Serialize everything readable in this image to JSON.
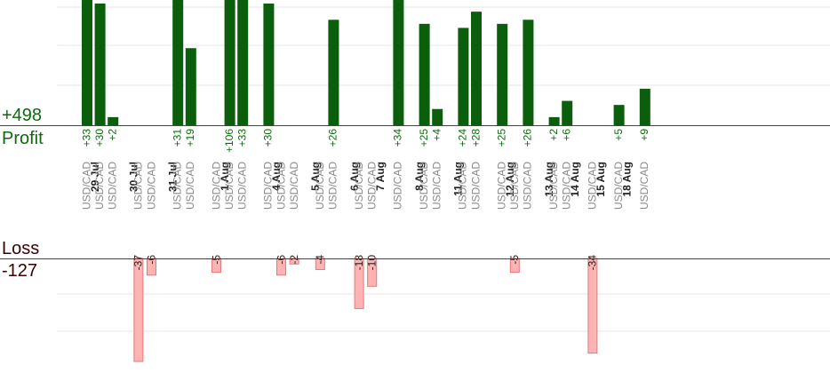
{
  "profit": {
    "total": "+498",
    "label": "Profit"
  },
  "loss": {
    "label": "Loss",
    "total": "-127"
  },
  "colors": {
    "profit_bar": "#0b5e0b",
    "profit_text": "#0b6b0b",
    "loss_fill": "#ffb3b3",
    "loss_stroke": "#e07a7a",
    "date_text": "#222222",
    "pair_text": "#8a8a8a",
    "grid": "#e6e6e6"
  },
  "chart_data": {
    "type": "bar",
    "profit_axis_max": 30,
    "loss_axis_max": 37,
    "groups": [
      {
        "date": "29 Jul",
        "trades": [
          {
            "pair": "USD/CAD",
            "value": 33,
            "label": "+33"
          },
          {
            "pair": "USD/CAD",
            "value": 30,
            "label": "+30"
          },
          {
            "pair": "USD/CAD",
            "value": 2,
            "label": "+2"
          }
        ]
      },
      {
        "date": "30 Jul",
        "trades": [
          {
            "pair": "USD/CAD",
            "value": -37,
            "label": "-37"
          },
          {
            "pair": "USD/CAD",
            "value": -6,
            "label": "-6"
          }
        ]
      },
      {
        "date": "31 Jul",
        "trades": [
          {
            "pair": "USD/CAD",
            "value": 31,
            "label": "+31"
          },
          {
            "pair": "USD/CAD",
            "value": 19,
            "label": "+19"
          }
        ]
      },
      {
        "date": "1 Aug",
        "trades": [
          {
            "pair": "USD/CAD",
            "value": -5,
            "label": "-5"
          },
          {
            "pair": "USD/CAD",
            "value": 106,
            "label": "+106"
          },
          {
            "pair": "USD/CAD",
            "value": 33,
            "label": "+33"
          }
        ]
      },
      {
        "date": "4 Aug",
        "trades": [
          {
            "pair": "USD/CAD",
            "value": 30,
            "label": "+30"
          },
          {
            "pair": "USD/CAD",
            "value": -6,
            "label": "-6"
          },
          {
            "pair": "USD/CAD",
            "value": -2,
            "label": "-2"
          }
        ]
      },
      {
        "date": "5 Aug",
        "trades": [
          {
            "pair": "USD/CAD",
            "value": -4,
            "label": "-4"
          },
          {
            "pair": "USD/CAD",
            "value": 26,
            "label": "+26"
          }
        ]
      },
      {
        "date": "6 Aug",
        "trades": [
          {
            "pair": "USD/CAD",
            "value": -18,
            "label": "-18"
          },
          {
            "pair": "USD/CAD",
            "value": -10,
            "label": "-10"
          }
        ]
      },
      {
        "date": "7 Aug",
        "trades": [
          {
            "pair": "USD/CAD",
            "value": 34,
            "label": "+34"
          }
        ]
      },
      {
        "date": "8 Aug",
        "trades": [
          {
            "pair": "USD/CAD",
            "value": 25,
            "label": "+25"
          },
          {
            "pair": "USD/CAD",
            "value": 4,
            "label": "+4"
          }
        ]
      },
      {
        "date": "11 Aug",
        "trades": [
          {
            "pair": "USD/CAD",
            "value": 24,
            "label": "+24"
          },
          {
            "pair": "USD/CAD",
            "value": 28,
            "label": "+28"
          }
        ]
      },
      {
        "date": "12 Aug",
        "trades": [
          {
            "pair": "USD/CAD",
            "value": 25,
            "label": "+25"
          },
          {
            "pair": "USD/CAD",
            "value": -5,
            "label": "-5"
          },
          {
            "pair": "USD/CAD",
            "value": 26,
            "label": "+26"
          }
        ]
      },
      {
        "date": "13 Aug",
        "trades": [
          {
            "pair": "USD/CAD",
            "value": 2,
            "label": "+2"
          },
          {
            "pair": "USD/CAD",
            "value": 6,
            "label": "+6"
          }
        ]
      },
      {
        "date": "14 Aug",
        "trades": [
          {
            "pair": "USD/CAD",
            "value": -34,
            "label": "-34"
          }
        ]
      },
      {
        "date": "15 Aug",
        "trades": [
          {
            "pair": "USD/CAD",
            "value": 5,
            "label": "+5"
          }
        ]
      },
      {
        "date": "18 Aug",
        "trades": [
          {
            "pair": "USD/CAD",
            "value": 9,
            "label": "+9"
          }
        ]
      }
    ]
  }
}
